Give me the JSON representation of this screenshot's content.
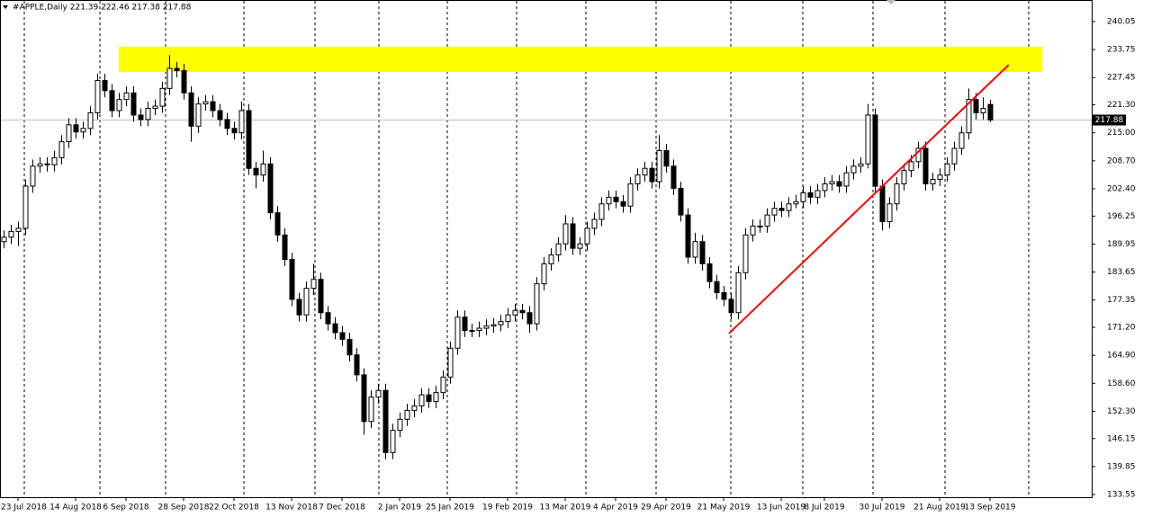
{
  "chart_data": {
    "type": "candlestick",
    "title": "#APPLE,Daily  221.39 222.46 217.38 217.88",
    "categories": [
      null,
      null,
      "23 Jul 2018",
      null,
      null,
      null,
      null,
      null,
      null,
      null,
      "14 Aug 2018",
      null,
      null,
      null,
      null,
      null,
      null,
      "6 Sep 2018",
      null,
      null,
      null,
      null,
      null,
      null,
      null,
      "28 Sep 2018",
      null,
      null,
      null,
      null,
      null,
      null,
      "22 Oct 2018",
      null,
      null,
      null,
      null,
      null,
      null,
      null,
      "13 Nov 2018",
      null,
      null,
      null,
      null,
      null,
      null,
      "7 Dec 2018",
      null,
      null,
      null,
      null,
      null,
      null,
      null,
      "2 Jan 2019",
      null,
      null,
      null,
      null,
      null,
      null,
      "25 Jan 2019",
      null,
      null,
      null,
      null,
      null,
      null,
      null,
      "19 Feb 2019",
      null,
      null,
      null,
      null,
      null,
      null,
      null,
      "13 Mar 2019",
      null,
      null,
      null,
      null,
      null,
      null,
      "4 Apr 2019",
      null,
      null,
      null,
      null,
      null,
      null,
      "29 Apr 2019",
      null,
      null,
      null,
      null,
      null,
      null,
      null,
      "21 May 2019",
      null,
      null,
      null,
      null,
      null,
      null,
      null,
      "13 Jun 2019",
      null,
      null,
      null,
      null,
      null,
      "8 Jul 2019",
      null,
      null,
      null,
      null,
      null,
      null,
      null,
      "30 Jul 2019",
      null,
      null,
      null,
      null,
      null,
      null,
      null,
      "21 Aug 2019",
      null,
      null,
      null,
      null,
      null,
      null,
      "13 Sep 2019"
    ],
    "ohlc": [
      [
        190.5,
        193.0,
        189.0,
        191.5
      ],
      [
        191.5,
        194.3,
        190.0,
        192.8
      ],
      [
        192.8,
        195.0,
        189.5,
        193.5
      ],
      [
        193.5,
        204.5,
        192.0,
        203.0
      ],
      [
        203.0,
        209.0,
        201.5,
        207.5
      ],
      [
        207.5,
        209.5,
        206.0,
        208.0
      ],
      [
        208.0,
        209.5,
        206.3,
        207.8
      ],
      [
        207.8,
        210.9,
        206.3,
        209.4
      ],
      [
        209.4,
        214.5,
        207.9,
        213.0
      ],
      [
        213.0,
        218.3,
        211.5,
        216.8
      ],
      [
        216.8,
        218.3,
        213.7,
        215.2
      ],
      [
        215.2,
        217.5,
        213.7,
        216.0
      ],
      [
        216.0,
        221.0,
        214.5,
        219.5
      ],
      [
        219.5,
        228.3,
        218.0,
        226.8
      ],
      [
        226.8,
        228.3,
        223.0,
        224.5
      ],
      [
        224.5,
        226.0,
        218.5,
        220.0
      ],
      [
        220.0,
        224.0,
        218.5,
        222.5
      ],
      [
        222.5,
        225.5,
        221.0,
        224.0
      ],
      [
        224.0,
        225.5,
        217.5,
        219.0
      ],
      [
        219.0,
        220.5,
        216.5,
        218.0
      ],
      [
        218.0,
        222.0,
        216.5,
        220.5
      ],
      [
        220.5,
        222.5,
        219.0,
        221.0
      ],
      [
        221.0,
        226.5,
        219.5,
        225.0
      ],
      [
        225.0,
        232.5,
        223.5,
        229.5
      ],
      [
        229.5,
        231.0,
        227.5,
        229.0
      ],
      [
        229.0,
        230.5,
        222.5,
        224.0
      ],
      [
        224.0,
        225.5,
        213.0,
        216.5
      ],
      [
        216.5,
        223.0,
        215.0,
        221.5
      ],
      [
        221.5,
        223.5,
        220.0,
        222.0
      ],
      [
        222.0,
        223.5,
        218.5,
        220.0
      ],
      [
        220.0,
        221.5,
        216.5,
        218.0
      ],
      [
        218.0,
        219.5,
        214.5,
        216.0
      ],
      [
        216.0,
        217.5,
        213.5,
        215.0
      ],
      [
        215.0,
        222.0,
        213.5,
        220.0
      ],
      [
        220.0,
        221.5,
        205.5,
        207.0
      ],
      [
        207.0,
        208.5,
        202.5,
        205.5
      ],
      [
        205.5,
        211.0,
        204.0,
        208.0
      ],
      [
        208.0,
        209.5,
        195.5,
        197.0
      ],
      [
        197.0,
        198.5,
        190.5,
        192.0
      ],
      [
        192.0,
        193.5,
        185.0,
        186.5
      ],
      [
        186.5,
        188.0,
        176.0,
        177.5
      ],
      [
        177.5,
        179.0,
        172.5,
        174.0
      ],
      [
        174.0,
        181.5,
        172.5,
        180.0
      ],
      [
        180.0,
        185.5,
        178.5,
        182.0
      ],
      [
        182.0,
        183.5,
        173.0,
        174.5
      ],
      [
        174.5,
        176.0,
        170.5,
        172.0
      ],
      [
        172.0,
        173.5,
        168.5,
        170.0
      ],
      [
        170.0,
        171.5,
        167.0,
        168.5
      ],
      [
        168.5,
        170.0,
        163.5,
        165.0
      ],
      [
        165.0,
        166.5,
        159.0,
        160.5
      ],
      [
        160.5,
        162.0,
        147.0,
        150.0
      ],
      [
        150.0,
        157.0,
        148.5,
        155.5
      ],
      [
        155.5,
        158.5,
        154.0,
        157.0
      ],
      [
        157.0,
        158.5,
        141.5,
        143.0
      ],
      [
        143.0,
        149.5,
        141.5,
        148.0
      ],
      [
        148.0,
        152.0,
        146.5,
        150.5
      ],
      [
        150.5,
        154.0,
        149.0,
        152.5
      ],
      [
        152.5,
        155.0,
        151.0,
        153.5
      ],
      [
        153.5,
        157.5,
        152.0,
        156.0
      ],
      [
        156.0,
        157.5,
        153.0,
        154.5
      ],
      [
        154.5,
        158.0,
        153.0,
        156.5
      ],
      [
        156.5,
        161.5,
        155.0,
        160.0
      ],
      [
        160.0,
        168.0,
        158.5,
        166.5
      ],
      [
        166.5,
        175.0,
        165.0,
        173.5
      ],
      [
        173.5,
        175.0,
        169.0,
        170.5
      ],
      [
        170.5,
        172.0,
        169.0,
        170.5
      ],
      [
        170.5,
        172.5,
        169.0,
        171.0
      ],
      [
        171.0,
        173.0,
        169.5,
        171.5
      ],
      [
        171.5,
        173.3,
        170.0,
        171.8
      ],
      [
        171.8,
        174.0,
        170.3,
        172.5
      ],
      [
        172.5,
        175.5,
        171.0,
        174.0
      ],
      [
        174.0,
        176.5,
        172.5,
        175.0
      ],
      [
        175.0,
        176.5,
        173.0,
        174.5
      ],
      [
        174.5,
        176.0,
        170.0,
        172.0
      ],
      [
        172.0,
        182.5,
        170.5,
        181.0
      ],
      [
        181.0,
        187.0,
        179.5,
        185.5
      ],
      [
        185.5,
        189.0,
        184.0,
        187.5
      ],
      [
        187.5,
        191.5,
        186.0,
        190.0
      ],
      [
        190.0,
        196.5,
        188.5,
        194.5
      ],
      [
        194.5,
        196.0,
        187.5,
        189.0
      ],
      [
        189.0,
        191.5,
        187.5,
        190.0
      ],
      [
        190.0,
        195.0,
        188.5,
        193.5
      ],
      [
        193.5,
        197.0,
        192.0,
        195.5
      ],
      [
        195.5,
        200.5,
        194.0,
        199.0
      ],
      [
        199.0,
        202.0,
        197.5,
        200.5
      ],
      [
        200.5,
        202.0,
        198.0,
        199.5
      ],
      [
        199.5,
        201.0,
        197.0,
        198.5
      ],
      [
        198.5,
        205.0,
        197.0,
        203.5
      ],
      [
        203.5,
        207.0,
        202.0,
        205.5
      ],
      [
        205.5,
        208.5,
        204.0,
        207.0
      ],
      [
        207.0,
        208.5,
        202.5,
        204.0
      ],
      [
        204.0,
        214.5,
        202.5,
        211.0
      ],
      [
        211.0,
        212.5,
        206.0,
        207.5
      ],
      [
        207.5,
        209.0,
        201.0,
        202.5
      ],
      [
        202.5,
        204.0,
        195.0,
        196.5
      ],
      [
        196.5,
        198.0,
        185.5,
        187.0
      ],
      [
        187.0,
        192.5,
        185.5,
        190.5
      ],
      [
        190.5,
        192.0,
        184.0,
        185.5
      ],
      [
        185.5,
        187.0,
        180.0,
        181.5
      ],
      [
        181.5,
        183.0,
        177.5,
        179.0
      ],
      [
        179.0,
        180.5,
        176.0,
        177.5
      ],
      [
        177.5,
        179.0,
        173.0,
        174.5
      ],
      [
        174.5,
        185.0,
        173.0,
        183.5
      ],
      [
        183.5,
        193.5,
        182.0,
        192.0
      ],
      [
        192.0,
        195.5,
        190.5,
        194.0
      ],
      [
        194.0,
        195.5,
        192.5,
        194.0
      ],
      [
        194.0,
        198.0,
        192.5,
        196.5
      ],
      [
        196.5,
        199.5,
        195.0,
        198.0
      ],
      [
        198.0,
        199.5,
        196.0,
        197.5
      ],
      [
        197.5,
        200.5,
        196.0,
        199.0
      ],
      [
        199.0,
        201.0,
        198.0,
        199.5
      ],
      [
        199.5,
        203.0,
        198.0,
        201.5
      ],
      [
        201.5,
        203.0,
        199.0,
        200.5
      ],
      [
        200.5,
        203.5,
        199.0,
        202.0
      ],
      [
        202.0,
        205.0,
        200.5,
        203.5
      ],
      [
        203.5,
        205.5,
        202.0,
        204.0
      ],
      [
        204.0,
        205.5,
        201.5,
        203.0
      ],
      [
        203.0,
        207.5,
        201.5,
        206.0
      ],
      [
        206.0,
        209.0,
        204.5,
        207.5
      ],
      [
        207.5,
        209.5,
        206.0,
        208.0
      ],
      [
        208.0,
        221.5,
        207.0,
        219.0
      ],
      [
        219.0,
        220.5,
        201.5,
        203.0
      ],
      [
        203.0,
        204.5,
        193.0,
        195.0
      ],
      [
        195.0,
        200.5,
        193.5,
        199.0
      ],
      [
        199.0,
        205.0,
        197.5,
        203.5
      ],
      [
        203.5,
        208.0,
        202.0,
        206.5
      ],
      [
        206.5,
        210.0,
        205.0,
        208.5
      ],
      [
        208.5,
        213.0,
        207.0,
        211.5
      ],
      [
        211.5,
        213.0,
        202.0,
        203.5
      ],
      [
        203.5,
        206.0,
        202.0,
        204.5
      ],
      [
        204.5,
        207.0,
        203.0,
        205.5
      ],
      [
        205.5,
        209.5,
        204.0,
        208.0
      ],
      [
        208.0,
        213.0,
        206.5,
        211.5
      ],
      [
        211.5,
        216.5,
        210.0,
        215.0
      ],
      [
        215.0,
        225.0,
        213.5,
        222.5
      ],
      [
        222.5,
        224.0,
        218.0,
        219.5
      ],
      [
        219.5,
        223.0,
        218.0,
        220.5
      ],
      [
        221.39,
        222.46,
        217.38,
        217.88
      ]
    ],
    "bull_color": "#ffffff",
    "bear_color": "#000000",
    "ylim": [
      133.55,
      240.05
    ],
    "yticks": [
      133.55,
      139.85,
      {
        "value": 146.15,
        "label": "146.15"
      },
      {
        "value": 152.3,
        "label": "152.30"
      },
      {
        "value": 158.6,
        "label": "158.60"
      },
      {
        "value": 164.9,
        "label": "164.90"
      },
      {
        "value": 171.2,
        "label": "171.20"
      },
      177.35,
      183.65,
      189.95,
      196.25,
      {
        "value": 202.4,
        "label": "202.40"
      },
      {
        "value": 208.7,
        "label": "208.70"
      },
      {
        "value": 215.0,
        "label": "215.00"
      },
      {
        "value": 221.3,
        "label": "221.30"
      },
      227.45,
      233.75,
      240.05
    ],
    "last_price": 217.88,
    "zone": {
      "from": 16,
      "to": 144.25,
      "low": 228.7,
      "high": 234.4,
      "color": "#ffff00"
    },
    "trendline": {
      "x": [
        100.75,
        139.6
      ],
      "y": [
        169.8,
        230.3
      ],
      "color": "#ff0000"
    }
  }
}
